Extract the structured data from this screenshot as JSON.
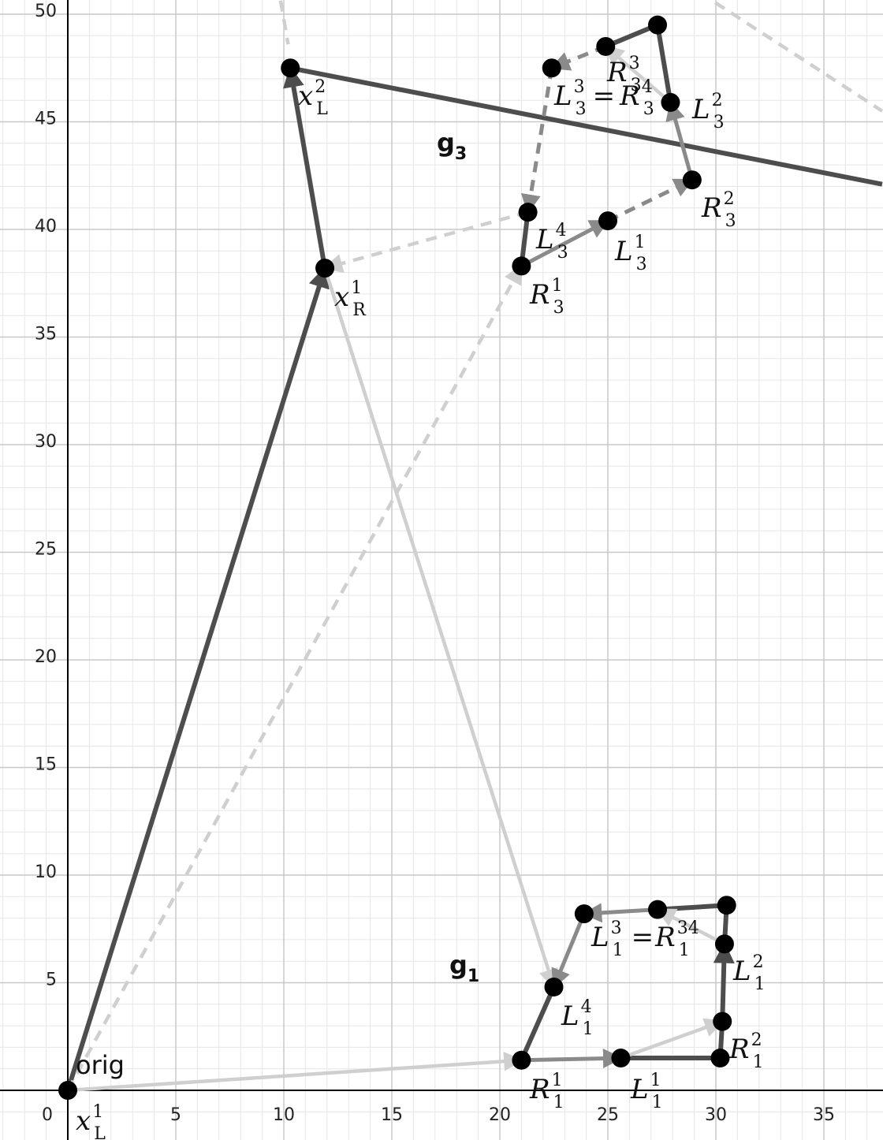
{
  "colors": {
    "dark": "#4d4d4d",
    "mid": "#8a8a8a",
    "light": "#cfcfcf",
    "point": "#000000",
    "grid_major": "#c8c8c8",
    "grid_minor": "#e6e6e6",
    "axis": "#000000"
  },
  "axes": {
    "x_ticks": [
      "0",
      "5",
      "10",
      "15",
      "20",
      "25",
      "30",
      "35"
    ],
    "y_ticks": [
      "5",
      "10",
      "15",
      "20",
      "25",
      "30",
      "35",
      "40",
      "45",
      "50"
    ],
    "x_range": [
      -3.1,
      37.7
    ],
    "y_range": [
      -1.8,
      51
    ]
  },
  "points": [
    {
      "id": "orig",
      "x": 0,
      "y": 0
    },
    {
      "id": "xR1",
      "x": 11.9,
      "y": 38.2
    },
    {
      "id": "xL2",
      "x": 10.3,
      "y": 47.5
    },
    {
      "id": "g1-R1",
      "x": 21,
      "y": 1.4
    },
    {
      "id": "g1-L1",
      "x": 25.6,
      "y": 1.5
    },
    {
      "id": "g1-R2",
      "x": 30.2,
      "y": 1.5
    },
    {
      "id": "g1-R2b",
      "x": 30.3,
      "y": 3.2
    },
    {
      "id": "g1-L2",
      "x": 30.4,
      "y": 6.8
    },
    {
      "id": "g1-TR",
      "x": 30.5,
      "y": 8.6
    },
    {
      "id": "g1-R3",
      "x": 27.3,
      "y": 8.4
    },
    {
      "id": "g1-L3",
      "x": 23.9,
      "y": 8.2
    },
    {
      "id": "g1-L4",
      "x": 22.5,
      "y": 4.8
    },
    {
      "id": "g3-R1",
      "x": 21,
      "y": 38.3
    },
    {
      "id": "g3-L4",
      "x": 21.3,
      "y": 40.8
    },
    {
      "id": "g3-L1",
      "x": 25,
      "y": 40.4
    },
    {
      "id": "g3-R2",
      "x": 28.9,
      "y": 42.3
    },
    {
      "id": "g3-L2",
      "x": 27.9,
      "y": 45.9
    },
    {
      "id": "g3-Top",
      "x": 27.3,
      "y": 49.5
    },
    {
      "id": "g3-R3",
      "x": 24.9,
      "y": 48.5
    },
    {
      "id": "g3-L3",
      "x": 22.4,
      "y": 47.5
    }
  ],
  "segments": [
    {
      "id": "orig-to-xR1",
      "x1": 0,
      "y1": 0,
      "x2": 11.9,
      "y2": 38.2,
      "style": "dark",
      "dash": false,
      "arrow": true
    },
    {
      "id": "xR1-to-xL2",
      "x1": 11.9,
      "y1": 38.2,
      "x2": 10.3,
      "y2": 47.5,
      "style": "dark",
      "dash": false,
      "arrow": true
    },
    {
      "id": "separating-line",
      "x1": 10.3,
      "y1": 47.5,
      "x2": 37.7,
      "y2": 42.1,
      "style": "dark",
      "dash": false,
      "arrow": false
    },
    {
      "id": "orig-to-g1R1",
      "x1": 0,
      "y1": 0,
      "x2": 21,
      "y2": 1.4,
      "style": "light",
      "dash": false,
      "arrow": true
    },
    {
      "id": "xR1-to-g1L4",
      "x1": 11.9,
      "y1": 38.2,
      "x2": 22.5,
      "y2": 4.8,
      "style": "light",
      "dash": false,
      "arrow": true
    },
    {
      "id": "orig-to-g3R1-dashed",
      "x1": 0,
      "y1": 0,
      "x2": 21,
      "y2": 38.3,
      "style": "light",
      "dash": true,
      "arrow": true
    },
    {
      "id": "g3L4-to-xR1-dashed",
      "x1": 21.3,
      "y1": 40.8,
      "x2": 11.9,
      "y2": 38.2,
      "style": "light",
      "dash": true,
      "arrow": true
    },
    {
      "id": "top-left-dashed",
      "x1": 9.7,
      "y1": 51.5,
      "x2": 10.2,
      "y2": 48.6,
      "style": "light",
      "dash": true,
      "arrow": false
    },
    {
      "id": "top-right-dashed",
      "x1": 28.5,
      "y1": 51.5,
      "x2": 37.7,
      "y2": 45.5,
      "style": "light",
      "dash": true,
      "arrow": false
    },
    {
      "id": "g1-R1-L1",
      "x1": 21,
      "y1": 1.4,
      "x2": 25.6,
      "y2": 1.5,
      "style": "mid",
      "dash": false,
      "arrow": true
    },
    {
      "id": "g1-L1-R2",
      "x1": 25.6,
      "y1": 1.5,
      "x2": 30.2,
      "y2": 1.5,
      "style": "dark",
      "dash": false,
      "arrow": false
    },
    {
      "id": "g1-L1-R2b",
      "x1": 25.6,
      "y1": 1.5,
      "x2": 30.3,
      "y2": 3.2,
      "style": "light",
      "dash": false,
      "arrow": true
    },
    {
      "id": "g1-R2-R2b",
      "x1": 30.2,
      "y1": 1.5,
      "x2": 30.3,
      "y2": 3.2,
      "style": "dark",
      "dash": false,
      "arrow": false
    },
    {
      "id": "g1-R2b-L2",
      "x1": 30.3,
      "y1": 3.2,
      "x2": 30.4,
      "y2": 6.8,
      "style": "dark",
      "dash": false,
      "arrow": true
    },
    {
      "id": "g1-L2-TR",
      "x1": 30.4,
      "y1": 6.8,
      "x2": 30.5,
      "y2": 8.6,
      "style": "dark",
      "dash": false,
      "arrow": false
    },
    {
      "id": "g1-TR-R3",
      "x1": 30.5,
      "y1": 8.6,
      "x2": 27.3,
      "y2": 8.4,
      "style": "dark",
      "dash": false,
      "arrow": false
    },
    {
      "id": "g1-L2-R3",
      "x1": 30.4,
      "y1": 6.8,
      "x2": 27.3,
      "y2": 8.4,
      "style": "light",
      "dash": false,
      "arrow": true
    },
    {
      "id": "g1-R3-L3",
      "x1": 27.3,
      "y1": 8.4,
      "x2": 23.9,
      "y2": 8.2,
      "style": "mid",
      "dash": false,
      "arrow": true
    },
    {
      "id": "g1-L3-L4",
      "x1": 23.9,
      "y1": 8.2,
      "x2": 22.5,
      "y2": 4.8,
      "style": "mid",
      "dash": false,
      "arrow": true
    },
    {
      "id": "g1-L4-R1",
      "x1": 22.5,
      "y1": 4.8,
      "x2": 21,
      "y2": 1.4,
      "style": "dark",
      "dash": false,
      "arrow": false
    },
    {
      "id": "g3-R1-L1",
      "x1": 21,
      "y1": 38.3,
      "x2": 25,
      "y2": 40.4,
      "style": "mid",
      "dash": false,
      "arrow": true
    },
    {
      "id": "g3-R1-L4",
      "x1": 21,
      "y1": 38.3,
      "x2": 21.3,
      "y2": 40.8,
      "style": "dark",
      "dash": false,
      "arrow": false
    },
    {
      "id": "g3-L1-R2",
      "x1": 25,
      "y1": 40.4,
      "x2": 28.9,
      "y2": 42.3,
      "style": "mid",
      "dash": true,
      "arrow": true
    },
    {
      "id": "g3-R2-L2",
      "x1": 28.9,
      "y1": 42.3,
      "x2": 27.9,
      "y2": 45.9,
      "style": "mid",
      "dash": false,
      "arrow": true
    },
    {
      "id": "g3-L2-Top",
      "x1": 27.9,
      "y1": 45.9,
      "x2": 27.3,
      "y2": 49.5,
      "style": "dark",
      "dash": false,
      "arrow": false
    },
    {
      "id": "g3-Top-R3",
      "x1": 27.3,
      "y1": 49.5,
      "x2": 24.9,
      "y2": 48.5,
      "style": "dark",
      "dash": false,
      "arrow": false
    },
    {
      "id": "g3-L2-R3",
      "x1": 27.9,
      "y1": 45.9,
      "x2": 24.9,
      "y2": 48.5,
      "style": "light",
      "dash": false,
      "arrow": true
    },
    {
      "id": "g3-R3-L3",
      "x1": 24.9,
      "y1": 48.5,
      "x2": 22.4,
      "y2": 47.5,
      "style": "mid",
      "dash": true,
      "arrow": true
    },
    {
      "id": "g3-L3-L4",
      "x1": 22.4,
      "y1": 47.5,
      "x2": 21.3,
      "y2": 40.8,
      "style": "mid",
      "dash": true,
      "arrow": true
    }
  ],
  "labels": {
    "orig": "orig",
    "g1_base": "g",
    "g1_sub": "1",
    "g3_base": "g",
    "g3_sub": "3",
    "x": "x",
    "L": "L",
    "R": "R",
    "eq": "=",
    "s1": "1",
    "s2": "2",
    "s3": "3",
    "s4": "4"
  }
}
